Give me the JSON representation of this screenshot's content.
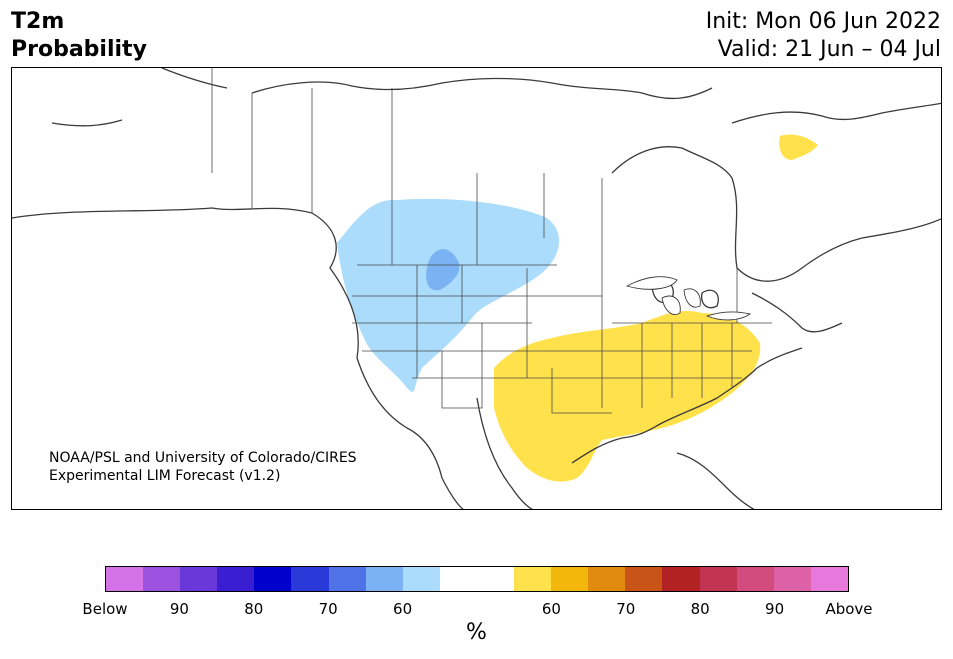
{
  "title": {
    "line1": "T2m",
    "line2": "Probability",
    "init": "Init: Mon 06 Jun 2022",
    "valid": "Valid: 21 Jun – 04 Jul"
  },
  "credit": {
    "line1": "NOAA/PSL and University of Colorado/CIRES",
    "line2": "Experimental LIM Forecast (v1.2)"
  },
  "legend": {
    "unit": "%",
    "colors": [
      "#d473e8",
      "#9a52df",
      "#6a37d9",
      "#3a1ed2",
      "#0000cd",
      "#2a3ad8",
      "#4f72e6",
      "#7ab2f3",
      "#acdcfc",
      "#ffffff",
      "#ffffff",
      "#ffe24b",
      "#f3b60a",
      "#e08a0e",
      "#c85418",
      "#b22222",
      "#c23452",
      "#d24c7e",
      "#dd61a6",
      "#e778dc"
    ],
    "ticks": [
      "Below",
      "90",
      "80",
      "70",
      "60",
      "60",
      "70",
      "80",
      "90",
      "Above"
    ]
  },
  "map": {
    "anomaly_colors": {
      "below_light": "#acdcfc",
      "below_medium": "#7ab2f3",
      "above_light": "#ffe24b"
    }
  }
}
